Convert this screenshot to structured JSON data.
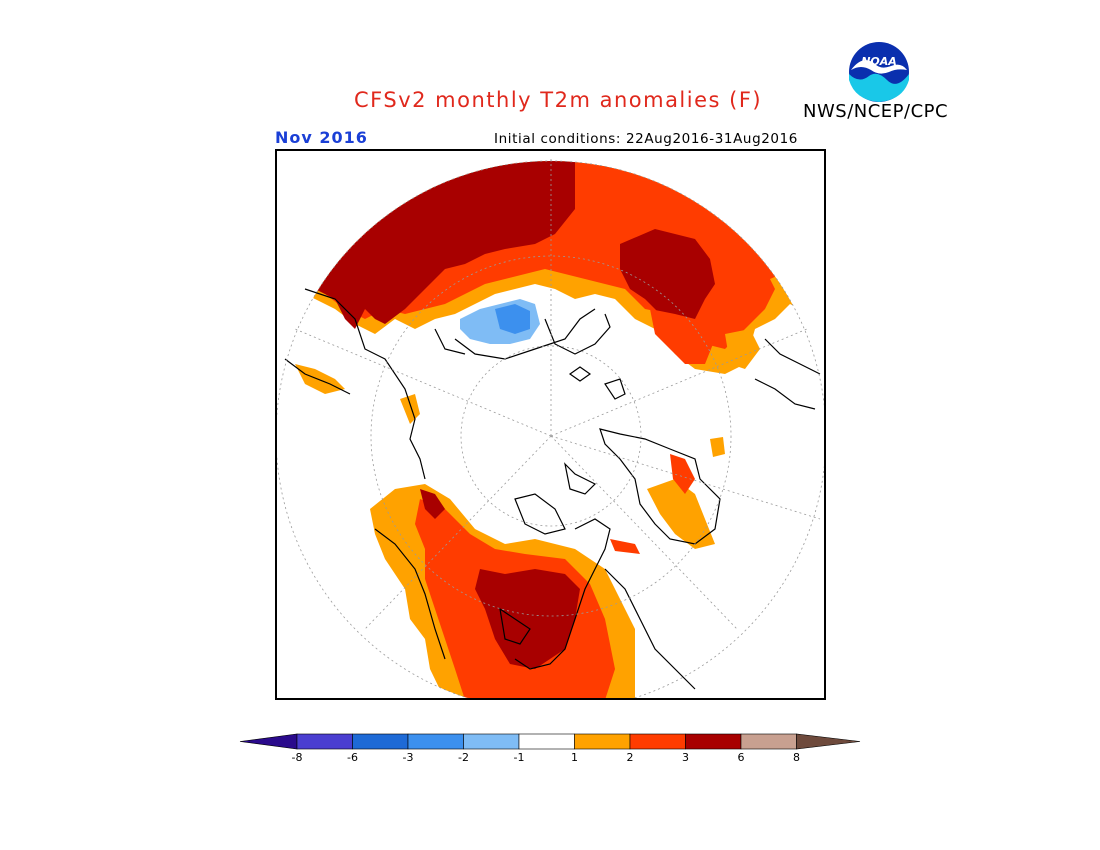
{
  "header": {
    "title": "CFSv2 monthly T2m anomalies (F)",
    "agency": "NWS/NCEP/CPC",
    "month": "Nov 2016",
    "initial_conditions": "Initial conditions: 22Aug2016-31Aug2016"
  },
  "logo": {
    "text": "NOAA",
    "icon": "noaa-logo-icon"
  },
  "legend": {
    "ticks": [
      "-8",
      "-6",
      "-3",
      "-2",
      "-1",
      "1",
      "2",
      "3",
      "6",
      "8"
    ],
    "colors": [
      "#2a0a8c",
      "#4a3ed0",
      "#1e6ad6",
      "#3c90ee",
      "#7fbcf5",
      "#ffffff",
      "#ffa200",
      "#ff3c00",
      "#a80000",
      "#c8a090",
      "#6e4a3c"
    ]
  },
  "map": {
    "projection": "north-polar-stereographic",
    "variable": "T2m anomaly",
    "units": "F"
  }
}
